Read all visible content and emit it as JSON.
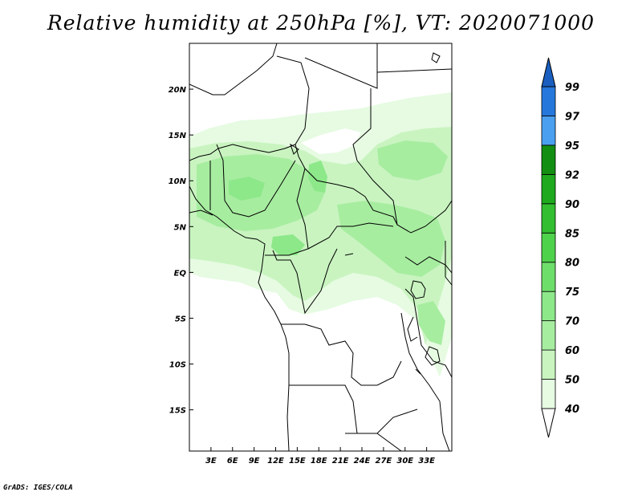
{
  "title": "Relative humidity at 250hPa [%], VT: 2020071000",
  "credit": "GrADS: IGES/COLA",
  "map": {
    "lon_range": [
      0,
      36.5
    ],
    "lat_range": [
      -19.5,
      25
    ],
    "x_ticks": [
      {
        "value": 3,
        "label": "3E"
      },
      {
        "value": 6,
        "label": "6E"
      },
      {
        "value": 9,
        "label": "9E"
      },
      {
        "value": 12,
        "label": "12E"
      },
      {
        "value": 15,
        "label": "15E"
      },
      {
        "value": 18,
        "label": "18E"
      },
      {
        "value": 21,
        "label": "21E"
      },
      {
        "value": 24,
        "label": "24E"
      },
      {
        "value": 27,
        "label": "27E"
      },
      {
        "value": 30,
        "label": "30E"
      },
      {
        "value": 33,
        "label": "33E"
      }
    ],
    "y_ticks": [
      {
        "value": 20,
        "label": "20N"
      },
      {
        "value": 15,
        "label": "15N"
      },
      {
        "value": 10,
        "label": "10N"
      },
      {
        "value": 5,
        "label": "5N"
      },
      {
        "value": 0,
        "label": "EQ"
      },
      {
        "value": -5,
        "label": "5S"
      },
      {
        "value": -10,
        "label": "10S"
      },
      {
        "value": -15,
        "label": "15S"
      }
    ]
  },
  "colorbar": {
    "levels": [
      "40",
      "50",
      "60",
      "70",
      "75",
      "80",
      "85",
      "90",
      "92",
      "95",
      "97",
      "99"
    ],
    "colors": [
      "#ffffff",
      "#e6fbe2",
      "#c9f4c0",
      "#a7eda0",
      "#8de88a",
      "#6ede6a",
      "#4fd24b",
      "#33bd31",
      "#1ea91e",
      "#128e12",
      "#4a9ff0",
      "#2677dc",
      "#1a5fc0"
    ]
  }
}
